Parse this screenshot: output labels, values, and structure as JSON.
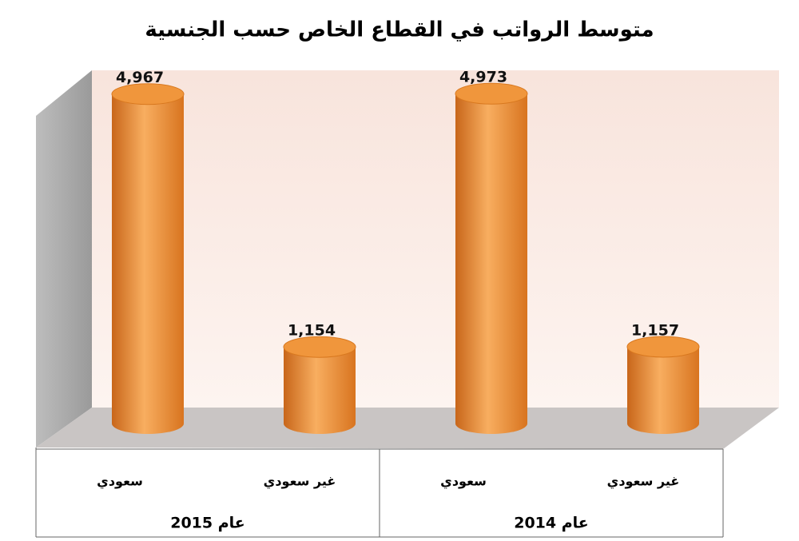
{
  "chart_data": {
    "type": "bar",
    "title": "متوسط الرواتب في القطاع الخاص حسب الجنسية",
    "groups": [
      "عام 2015",
      "عام 2014"
    ],
    "categories": [
      "سعودي",
      "غير سعودي",
      "سعودي",
      "غير سعودي"
    ],
    "values": [
      4967,
      1154,
      4973,
      1157
    ],
    "value_labels": [
      "4,967",
      "1,154",
      "4,973",
      "1,157"
    ],
    "color": "#f0963c"
  }
}
